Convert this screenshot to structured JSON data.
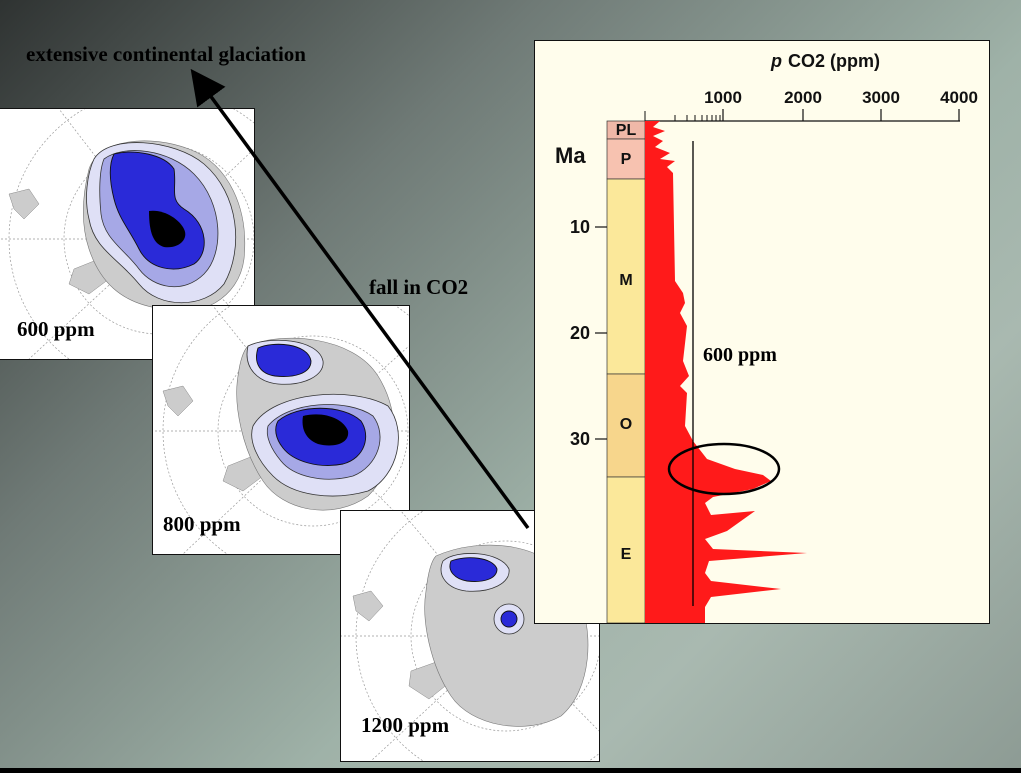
{
  "slide": {
    "title_annotation": "extensive continental glaciation",
    "arrow_annotation": "fall in CO2"
  },
  "maps": [
    {
      "label": "600 ppm"
    },
    {
      "label": "800 ppm"
    },
    {
      "label": "1200 ppm"
    }
  ],
  "chart_data": {
    "type": "area",
    "title_prefix": "p",
    "title": "CO2 (ppm)",
    "x_ticks": [
      "1000",
      "2000",
      "3000",
      "4000"
    ],
    "y_label": "Ma",
    "y_ticks": [
      "10",
      "20",
      "30"
    ],
    "epochs": [
      "PL",
      "P",
      "M",
      "O",
      "E"
    ],
    "threshold_label": "600 ppm",
    "threshold_value_ppm": 600,
    "fill_color": "#ff1a1a",
    "epoch_colors": {
      "PL": "#f0b8a8",
      "P": "#f7c2b0",
      "M": "#fbe89a",
      "O": "#f7d68c",
      "E": "#fbe89a"
    }
  }
}
